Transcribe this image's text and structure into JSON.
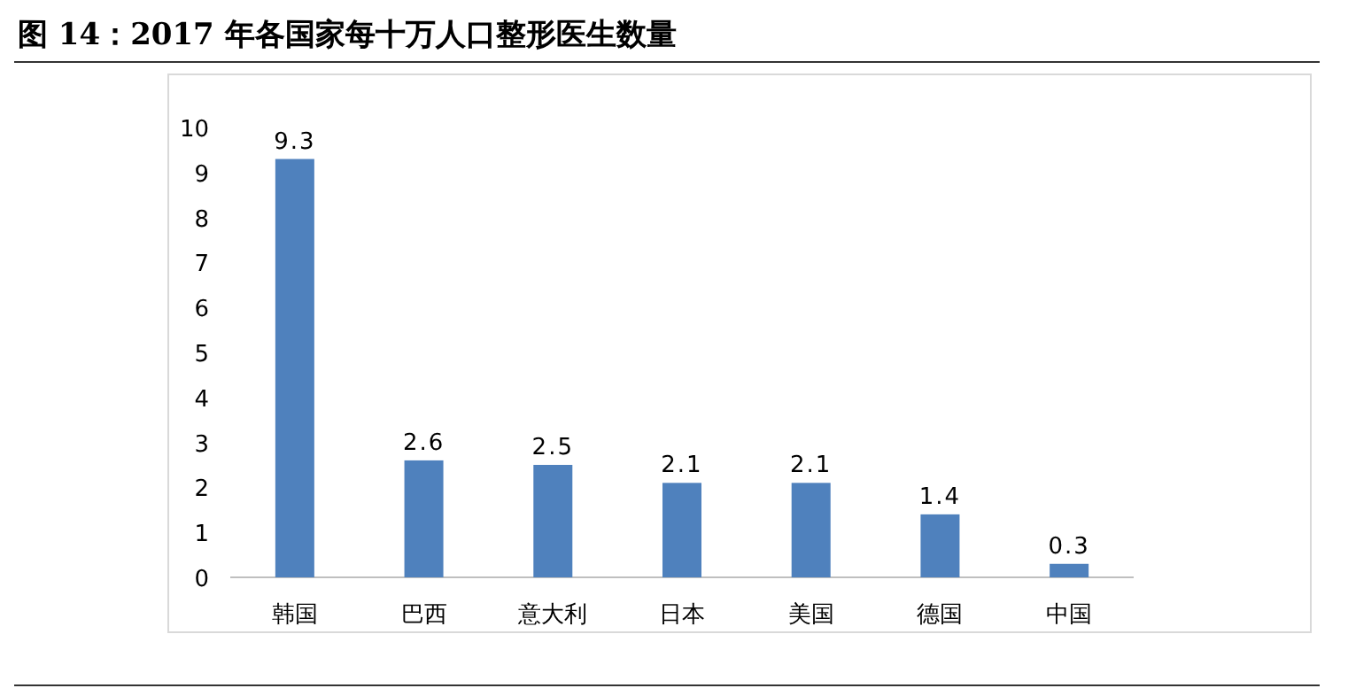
{
  "chart_data": {
    "type": "bar",
    "title": "图 14：2017 年各国家每十万人口整形医生数量",
    "categories": [
      "韩国",
      "巴西",
      "意大利",
      "日本",
      "美国",
      "德国",
      "中国"
    ],
    "values": [
      9.3,
      2.6,
      2.5,
      2.1,
      2.1,
      1.4,
      0.3
    ],
    "color": "#4f81bd",
    "ylim": [
      0,
      10
    ],
    "yticks": [
      0,
      1,
      2,
      3,
      4,
      5,
      6,
      7,
      8,
      9,
      10
    ],
    "data_labels": true,
    "grid": false
  }
}
